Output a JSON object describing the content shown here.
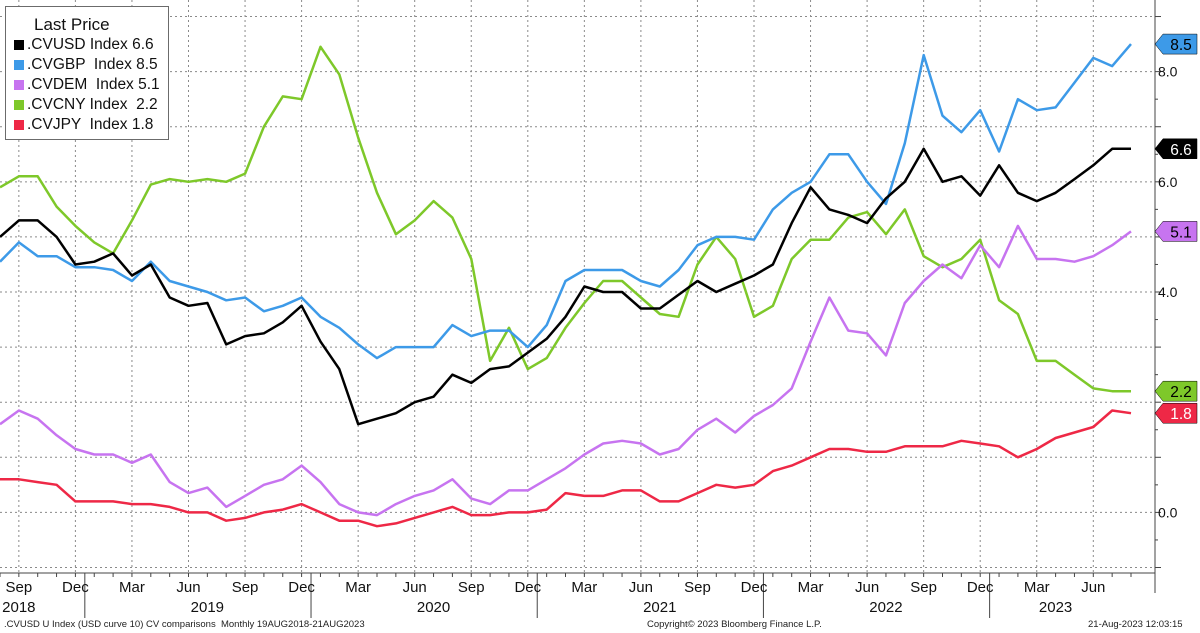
{
  "legend": {
    "title": "Last Price",
    "items": [
      {
        "text": ".CVUSD Index 6.6",
        "color": "#000000"
      },
      {
        "text": ".CVGBP  Index 8.5",
        "color": "#3d9ae8"
      },
      {
        "text": ".CVDEM  Index 5.1",
        "color": "#c774f0"
      },
      {
        "text": ".CVCNY Index  2.2",
        "color": "#7ec82a"
      },
      {
        "text": ".CVJPY  Index 1.8",
        "color": "#ee2846"
      }
    ]
  },
  "footer": {
    "left": ".CVUSD U Index (USD curve 10) CV comparisons  Monthly 19AUG2018-21AUG2023",
    "center": "Copyright© 2023 Bloomberg Finance L.P.",
    "right": "21-Aug-2023 12:03:15"
  },
  "chart_data": {
    "type": "line",
    "x": [
      "2018-08",
      "2018-09",
      "2018-10",
      "2018-11",
      "2018-12",
      "2019-01",
      "2019-02",
      "2019-03",
      "2019-04",
      "2019-05",
      "2019-06",
      "2019-07",
      "2019-08",
      "2019-09",
      "2019-10",
      "2019-11",
      "2019-12",
      "2020-01",
      "2020-02",
      "2020-03",
      "2020-04",
      "2020-05",
      "2020-06",
      "2020-07",
      "2020-08",
      "2020-09",
      "2020-10",
      "2020-11",
      "2020-12",
      "2021-01",
      "2021-02",
      "2021-03",
      "2021-04",
      "2021-05",
      "2021-06",
      "2021-07",
      "2021-08",
      "2021-09",
      "2021-10",
      "2021-11",
      "2021-12",
      "2022-01",
      "2022-02",
      "2022-03",
      "2022-04",
      "2022-05",
      "2022-06",
      "2022-07",
      "2022-08",
      "2022-09",
      "2022-10",
      "2022-11",
      "2022-12",
      "2023-01",
      "2023-02",
      "2023-03",
      "2023-04",
      "2023-05",
      "2023-06",
      "2023-07",
      "2023-08"
    ],
    "series": [
      {
        "name": ".CVUSD Index",
        "color": "#000000",
        "last": "6.6",
        "values": [
          5.0,
          5.3,
          5.3,
          5.0,
          4.5,
          4.55,
          4.7,
          4.3,
          4.5,
          3.9,
          3.75,
          3.8,
          3.05,
          3.2,
          3.25,
          3.45,
          3.75,
          3.1,
          2.6,
          1.6,
          1.7,
          1.8,
          2.0,
          2.1,
          2.5,
          2.35,
          2.6,
          2.65,
          2.9,
          3.15,
          3.55,
          4.1,
          4.0,
          4.0,
          3.7,
          3.7,
          3.95,
          4.2,
          4.0,
          4.15,
          4.3,
          4.5,
          5.25,
          5.9,
          5.5,
          5.4,
          5.25,
          5.7,
          6.0,
          6.6,
          6.0,
          6.1,
          5.75,
          6.3,
          5.8,
          5.65,
          5.8,
          6.05,
          6.3,
          6.6,
          6.6
        ]
      },
      {
        "name": ".CVGBP Index",
        "color": "#3d9ae8",
        "last": "8.5",
        "values": [
          4.55,
          4.9,
          4.65,
          4.65,
          4.45,
          4.45,
          4.4,
          4.2,
          4.55,
          4.2,
          4.1,
          4.0,
          3.85,
          3.9,
          3.65,
          3.75,
          3.9,
          3.55,
          3.35,
          3.05,
          2.8,
          3.0,
          3.0,
          3.0,
          3.4,
          3.2,
          3.3,
          3.3,
          3.0,
          3.4,
          4.2,
          4.4,
          4.4,
          4.4,
          4.2,
          4.1,
          4.4,
          4.85,
          5.0,
          5.0,
          4.95,
          5.5,
          5.8,
          6.0,
          6.5,
          6.5,
          6.0,
          5.6,
          6.7,
          8.3,
          7.2,
          6.9,
          7.3,
          6.55,
          7.5,
          7.3,
          7.35,
          7.8,
          8.25,
          8.1,
          8.5
        ]
      },
      {
        "name": ".CVDEM Index",
        "color": "#c774f0",
        "last": "5.1",
        "values": [
          1.6,
          1.85,
          1.7,
          1.4,
          1.15,
          1.05,
          1.05,
          0.9,
          1.05,
          0.55,
          0.35,
          0.45,
          0.1,
          0.3,
          0.5,
          0.6,
          0.85,
          0.55,
          0.15,
          0.0,
          -0.05,
          0.15,
          0.3,
          0.4,
          0.6,
          0.25,
          0.15,
          0.4,
          0.4,
          0.6,
          0.8,
          1.05,
          1.25,
          1.3,
          1.25,
          1.05,
          1.15,
          1.5,
          1.7,
          1.45,
          1.75,
          1.95,
          2.25,
          3.1,
          3.9,
          3.3,
          3.25,
          2.85,
          3.8,
          4.2,
          4.5,
          4.25,
          4.85,
          4.45,
          5.2,
          4.6,
          4.6,
          4.55,
          4.65,
          4.85,
          5.1
        ]
      },
      {
        "name": ".CVCNY Index",
        "color": "#7ec82a",
        "last": "2.2",
        "values": [
          5.9,
          6.1,
          6.1,
          5.55,
          5.2,
          4.9,
          4.7,
          5.3,
          5.95,
          6.05,
          6.0,
          6.05,
          6.0,
          6.15,
          7.0,
          7.55,
          7.5,
          8.45,
          7.95,
          6.8,
          5.8,
          5.05,
          5.3,
          5.65,
          5.35,
          4.6,
          2.75,
          3.35,
          2.6,
          2.8,
          3.35,
          3.8,
          4.2,
          4.2,
          3.9,
          3.6,
          3.55,
          4.5,
          5.0,
          4.6,
          3.55,
          3.75,
          4.6,
          4.95,
          4.95,
          5.35,
          5.45,
          5.05,
          5.5,
          4.65,
          4.45,
          4.6,
          4.95,
          3.85,
          3.6,
          2.75,
          2.75,
          2.5,
          2.25,
          2.2,
          2.2
        ]
      },
      {
        "name": ".CVJPY Index",
        "color": "#ee2846",
        "last": "1.8",
        "values": [
          0.6,
          0.6,
          0.55,
          0.5,
          0.2,
          0.2,
          0.2,
          0.15,
          0.15,
          0.1,
          0.0,
          0.0,
          -0.15,
          -0.1,
          0.0,
          0.05,
          0.15,
          0.0,
          -0.15,
          -0.15,
          -0.25,
          -0.2,
          -0.1,
          0.0,
          0.1,
          -0.05,
          -0.05,
          0.0,
          0.0,
          0.05,
          0.35,
          0.3,
          0.3,
          0.4,
          0.4,
          0.2,
          0.2,
          0.35,
          0.5,
          0.45,
          0.5,
          0.75,
          0.85,
          1.0,
          1.15,
          1.15,
          1.1,
          1.1,
          1.2,
          1.2,
          1.2,
          1.3,
          1.25,
          1.2,
          1.0,
          1.15,
          1.35,
          1.45,
          1.55,
          1.85,
          1.8
        ]
      }
    ],
    "xlabel": "",
    "ylabel": "",
    "ylim": [
      -1.1,
      9.3
    ],
    "y_ticks": [
      0.0,
      4.0,
      6.0,
      8.0
    ],
    "y_tick_labels": [
      "0.0",
      "4.0",
      "6.0",
      "8.0"
    ],
    "x_tick_labels": [
      {
        "date": "2018-09",
        "label": "Sep"
      },
      {
        "date": "2018-12",
        "label": "Dec"
      },
      {
        "date": "2019-03",
        "label": "Mar"
      },
      {
        "date": "2019-06",
        "label": "Jun"
      },
      {
        "date": "2019-09",
        "label": "Sep"
      },
      {
        "date": "2019-12",
        "label": "Dec"
      },
      {
        "date": "2020-03",
        "label": "Mar"
      },
      {
        "date": "2020-06",
        "label": "Jun"
      },
      {
        "date": "2020-09",
        "label": "Sep"
      },
      {
        "date": "2020-12",
        "label": "Dec"
      },
      {
        "date": "2021-03",
        "label": "Mar"
      },
      {
        "date": "2021-06",
        "label": "Jun"
      },
      {
        "date": "2021-09",
        "label": "Sep"
      },
      {
        "date": "2021-12",
        "label": "Dec"
      },
      {
        "date": "2022-03",
        "label": "Mar"
      },
      {
        "date": "2022-06",
        "label": "Jun"
      },
      {
        "date": "2022-09",
        "label": "Sep"
      },
      {
        "date": "2022-12",
        "label": "Dec"
      },
      {
        "date": "2023-03",
        "label": "Mar"
      },
      {
        "date": "2023-06",
        "label": "Jun"
      }
    ],
    "year_labels": [
      {
        "date": "2018-09",
        "label": "2018"
      },
      {
        "date": "2019-07",
        "label": "2019"
      },
      {
        "date": "2020-07",
        "label": "2020"
      },
      {
        "date": "2021-07",
        "label": "2021"
      },
      {
        "date": "2022-07",
        "label": "2022"
      },
      {
        "date": "2023-04",
        "label": "2023"
      }
    ],
    "year_boundaries": [
      "2018-12",
      "2019-12",
      "2020-12",
      "2021-12",
      "2022-12"
    ],
    "grid": true,
    "legend_position": "top-left"
  }
}
